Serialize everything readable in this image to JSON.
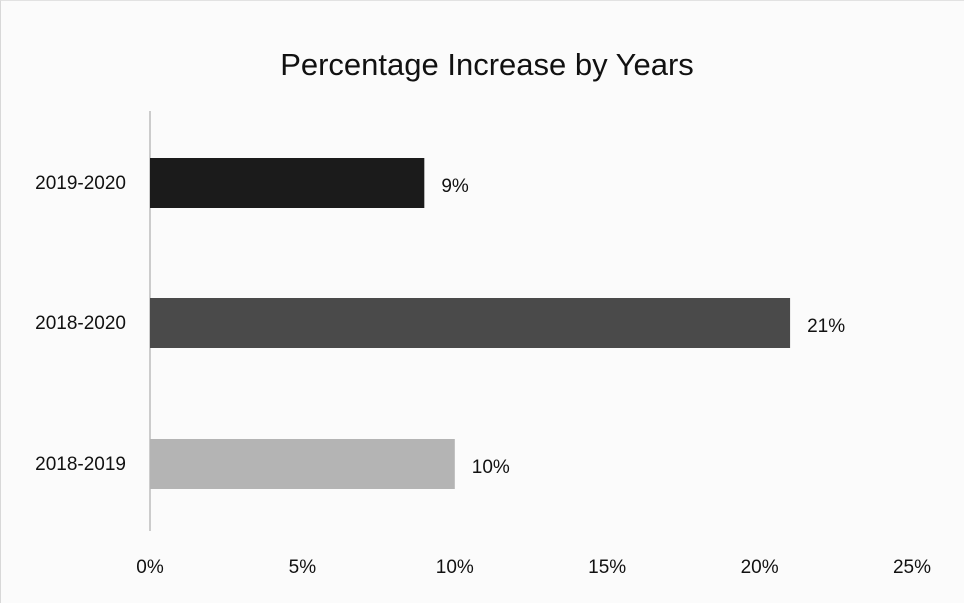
{
  "chart_data": {
    "type": "bar",
    "orientation": "horizontal",
    "title": "Percentage Increase by Years",
    "categories": [
      "2019-2020",
      "2018-2020",
      "2018-2019"
    ],
    "values": [
      9,
      21,
      10
    ],
    "data_labels": [
      "9%",
      "21%",
      "10%"
    ],
    "bar_colors": [
      "#1b1b1b",
      "#4a4a4a",
      "#b4b4b4"
    ],
    "xlim": [
      0,
      25
    ],
    "x_ticks": [
      0,
      5,
      10,
      15,
      20,
      25
    ],
    "x_tick_labels": [
      "0%",
      "5%",
      "10%",
      "15%",
      "20%",
      "25%"
    ],
    "grid": false,
    "legend": "none"
  }
}
